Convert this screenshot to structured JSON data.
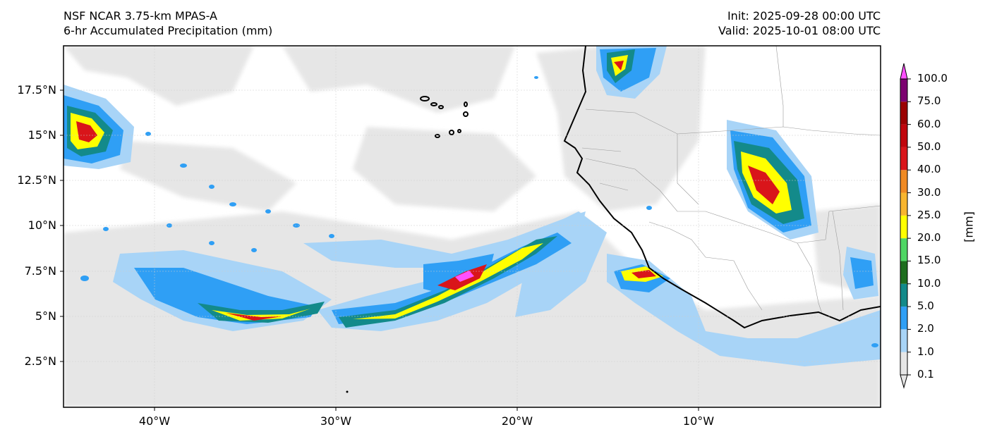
{
  "header": {
    "model": "NSF NCAR 3.75-km MPAS-A",
    "field": "6-hr Accumulated Precipitation (mm)",
    "init": "Init: 2025-09-28 00:00 UTC",
    "valid": "Valid: 2025-10-01 08:00 UTC"
  },
  "map": {
    "lat_ticks": [
      "17.5°N",
      "15°N",
      "12.5°N",
      "10°N",
      "7.5°N",
      "5°N",
      "2.5°N"
    ],
    "lon_ticks": [
      "40°W",
      "30°W",
      "20°W",
      "10°W"
    ]
  },
  "colorbar": {
    "units": "[mm]",
    "levels": [
      "0.1",
      "1.0",
      "2.0",
      "5.0",
      "10.0",
      "15.0",
      "20.0",
      "25.0",
      "30.0",
      "40.0",
      "50.0",
      "60.0",
      "75.0",
      "100.0"
    ],
    "colors": [
      "#e6e6e6",
      "#a8d4f7",
      "#2f9ff5",
      "#138a8a",
      "#1e6d1e",
      "#4fd664",
      "#ffff00",
      "#f8b52e",
      "#f08a23",
      "#d9151a",
      "#c0060d",
      "#9b0202",
      "#7c0270",
      "#ff50ff"
    ]
  }
}
